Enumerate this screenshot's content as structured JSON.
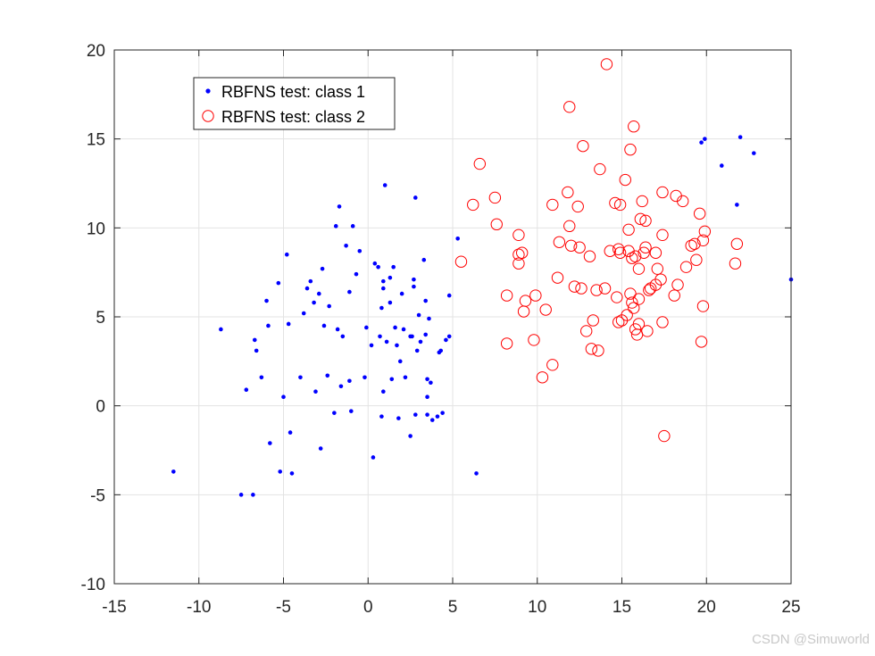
{
  "chart_data": {
    "type": "scatter",
    "title": "",
    "xlabel": "",
    "ylabel": "",
    "xlim": [
      -15,
      25
    ],
    "ylim": [
      -10,
      20
    ],
    "xticks": [
      -15,
      -10,
      -5,
      0,
      5,
      10,
      15,
      20,
      25
    ],
    "yticks": [
      -10,
      -5,
      0,
      5,
      10,
      15,
      20
    ],
    "grid": true,
    "legend_position": "top-left",
    "series": [
      {
        "name": "RBFNS test: class 1",
        "marker": "dot",
        "color": "#0000ff",
        "points": [
          [
            -11.5,
            -3.7
          ],
          [
            -8.7,
            4.3
          ],
          [
            -7.5,
            -5.0
          ],
          [
            -7.2,
            0.9
          ],
          [
            -6.8,
            -5.0
          ],
          [
            -6.7,
            3.7
          ],
          [
            -6.6,
            3.1
          ],
          [
            -6.3,
            1.6
          ],
          [
            -6.0,
            5.9
          ],
          [
            -5.9,
            4.5
          ],
          [
            -5.8,
            -2.1
          ],
          [
            -5.3,
            6.9
          ],
          [
            -5.2,
            -3.7
          ],
          [
            -5.0,
            0.5
          ],
          [
            -4.8,
            8.5
          ],
          [
            -4.7,
            4.6
          ],
          [
            -4.6,
            -1.5
          ],
          [
            -4.5,
            -3.8
          ],
          [
            -4.0,
            1.6
          ],
          [
            -3.8,
            5.2
          ],
          [
            -3.6,
            6.6
          ],
          [
            -3.4,
            7.0
          ],
          [
            -3.2,
            5.8
          ],
          [
            -3.1,
            0.8
          ],
          [
            -2.9,
            6.3
          ],
          [
            -2.8,
            -2.4
          ],
          [
            -2.7,
            7.7
          ],
          [
            -2.6,
            4.5
          ],
          [
            -2.4,
            1.7
          ],
          [
            -2.3,
            5.6
          ],
          [
            -2.0,
            -0.4
          ],
          [
            -1.9,
            10.1
          ],
          [
            -1.8,
            4.3
          ],
          [
            -1.7,
            11.2
          ],
          [
            -1.6,
            1.1
          ],
          [
            -1.5,
            3.9
          ],
          [
            -1.3,
            9.0
          ],
          [
            -1.1,
            6.4
          ],
          [
            -1.1,
            1.4
          ],
          [
            -1.0,
            -0.3
          ],
          [
            -0.9,
            10.1
          ],
          [
            -0.7,
            7.4
          ],
          [
            -0.5,
            8.7
          ],
          [
            -0.2,
            1.6
          ],
          [
            -0.1,
            4.4
          ],
          [
            0.2,
            3.4
          ],
          [
            0.3,
            -2.9
          ],
          [
            0.4,
            8.0
          ],
          [
            0.6,
            7.8
          ],
          [
            0.7,
            3.9
          ],
          [
            0.8,
            5.5
          ],
          [
            0.8,
            -0.6
          ],
          [
            0.9,
            6.6
          ],
          [
            0.9,
            7.0
          ],
          [
            0.9,
            0.8
          ],
          [
            1.0,
            12.4
          ],
          [
            1.1,
            3.6
          ],
          [
            1.3,
            5.8
          ],
          [
            1.3,
            7.2
          ],
          [
            1.4,
            1.5
          ],
          [
            1.5,
            7.8
          ],
          [
            1.6,
            4.4
          ],
          [
            1.7,
            3.4
          ],
          [
            1.8,
            -0.7
          ],
          [
            1.9,
            2.5
          ],
          [
            2.0,
            6.3
          ],
          [
            2.1,
            4.3
          ],
          [
            2.2,
            1.6
          ],
          [
            2.5,
            -1.7
          ],
          [
            2.5,
            3.9
          ],
          [
            2.6,
            3.9
          ],
          [
            2.7,
            7.1
          ],
          [
            2.7,
            6.7
          ],
          [
            2.8,
            -0.5
          ],
          [
            2.8,
            11.7
          ],
          [
            2.9,
            3.1
          ],
          [
            3.0,
            5.1
          ],
          [
            3.1,
            3.6
          ],
          [
            3.3,
            8.2
          ],
          [
            3.4,
            4.0
          ],
          [
            3.4,
            5.9
          ],
          [
            3.5,
            -0.5
          ],
          [
            3.5,
            1.5
          ],
          [
            3.5,
            0.5
          ],
          [
            3.6,
            4.9
          ],
          [
            3.7,
            1.3
          ],
          [
            3.8,
            -0.8
          ],
          [
            4.1,
            -0.6
          ],
          [
            4.2,
            3.0
          ],
          [
            4.3,
            3.1
          ],
          [
            4.4,
            -0.4
          ],
          [
            4.6,
            3.7
          ],
          [
            4.8,
            6.2
          ],
          [
            4.8,
            3.9
          ],
          [
            5.3,
            9.4
          ],
          [
            6.4,
            -3.8
          ],
          [
            19.7,
            14.8
          ],
          [
            19.9,
            15.0
          ],
          [
            20.9,
            13.5
          ],
          [
            21.8,
            11.3
          ],
          [
            22.0,
            15.1
          ],
          [
            22.8,
            14.2
          ],
          [
            25.0,
            7.1
          ]
        ]
      },
      {
        "name": "RBFNS test: class 2",
        "marker": "circle",
        "color": "#ff0000",
        "points": [
          [
            5.5,
            8.1
          ],
          [
            6.2,
            11.3
          ],
          [
            6.6,
            13.6
          ],
          [
            7.5,
            11.7
          ],
          [
            7.6,
            10.2
          ],
          [
            8.2,
            6.2
          ],
          [
            8.2,
            3.5
          ],
          [
            8.9,
            8.0
          ],
          [
            8.9,
            8.5
          ],
          [
            8.9,
            9.6
          ],
          [
            9.1,
            8.6
          ],
          [
            9.2,
            5.3
          ],
          [
            9.3,
            5.9
          ],
          [
            9.8,
            3.7
          ],
          [
            9.9,
            6.2
          ],
          [
            10.3,
            1.6
          ],
          [
            10.5,
            5.4
          ],
          [
            10.9,
            2.3
          ],
          [
            10.9,
            11.3
          ],
          [
            11.2,
            7.2
          ],
          [
            11.3,
            9.2
          ],
          [
            11.8,
            12.0
          ],
          [
            11.9,
            16.8
          ],
          [
            11.9,
            10.1
          ],
          [
            12.0,
            9.0
          ],
          [
            12.2,
            6.7
          ],
          [
            12.4,
            11.2
          ],
          [
            12.5,
            8.9
          ],
          [
            12.6,
            6.6
          ],
          [
            12.7,
            14.6
          ],
          [
            12.9,
            4.2
          ],
          [
            13.1,
            8.4
          ],
          [
            13.2,
            3.2
          ],
          [
            13.3,
            4.8
          ],
          [
            13.5,
            6.5
          ],
          [
            13.6,
            3.1
          ],
          [
            13.7,
            13.3
          ],
          [
            14.0,
            6.6
          ],
          [
            14.1,
            19.2
          ],
          [
            14.3,
            8.7
          ],
          [
            14.6,
            11.4
          ],
          [
            14.7,
            6.1
          ],
          [
            14.8,
            4.7
          ],
          [
            14.8,
            8.8
          ],
          [
            14.9,
            11.3
          ],
          [
            14.9,
            8.6
          ],
          [
            15.0,
            4.8
          ],
          [
            15.2,
            12.7
          ],
          [
            15.3,
            5.1
          ],
          [
            15.4,
            9.9
          ],
          [
            15.4,
            8.7
          ],
          [
            15.5,
            14.4
          ],
          [
            15.5,
            6.3
          ],
          [
            15.6,
            5.8
          ],
          [
            15.6,
            8.3
          ],
          [
            15.7,
            15.7
          ],
          [
            15.7,
            5.5
          ],
          [
            15.8,
            8.4
          ],
          [
            15.8,
            4.3
          ],
          [
            15.9,
            4.0
          ],
          [
            16.0,
            6.0
          ],
          [
            16.0,
            7.7
          ],
          [
            16.0,
            4.6
          ],
          [
            16.1,
            10.5
          ],
          [
            16.2,
            11.5
          ],
          [
            16.3,
            8.6
          ],
          [
            16.4,
            8.9
          ],
          [
            16.4,
            10.4
          ],
          [
            16.5,
            4.2
          ],
          [
            16.6,
            6.5
          ],
          [
            16.7,
            6.6
          ],
          [
            17.0,
            6.8
          ],
          [
            17.0,
            8.6
          ],
          [
            17.1,
            7.7
          ],
          [
            17.3,
            7.1
          ],
          [
            17.4,
            9.6
          ],
          [
            17.4,
            4.7
          ],
          [
            17.4,
            12.0
          ],
          [
            17.5,
            -1.7
          ],
          [
            18.1,
            6.2
          ],
          [
            18.2,
            11.8
          ],
          [
            18.3,
            6.8
          ],
          [
            18.6,
            11.5
          ],
          [
            18.8,
            7.8
          ],
          [
            19.1,
            9.0
          ],
          [
            19.3,
            9.1
          ],
          [
            19.4,
            8.2
          ],
          [
            19.6,
            10.8
          ],
          [
            19.7,
            3.6
          ],
          [
            19.8,
            5.6
          ],
          [
            19.8,
            9.3
          ],
          [
            19.9,
            9.8
          ],
          [
            21.7,
            8.0
          ],
          [
            21.8,
            9.1
          ]
        ]
      }
    ]
  },
  "legend": {
    "items": [
      {
        "label": "RBFNS test: class 1",
        "marker": "dot",
        "color": "#0000ff"
      },
      {
        "label": "RBFNS test: class 2",
        "marker": "circle",
        "color": "#ff0000"
      }
    ]
  },
  "watermark": "CSDN @Simuworld"
}
